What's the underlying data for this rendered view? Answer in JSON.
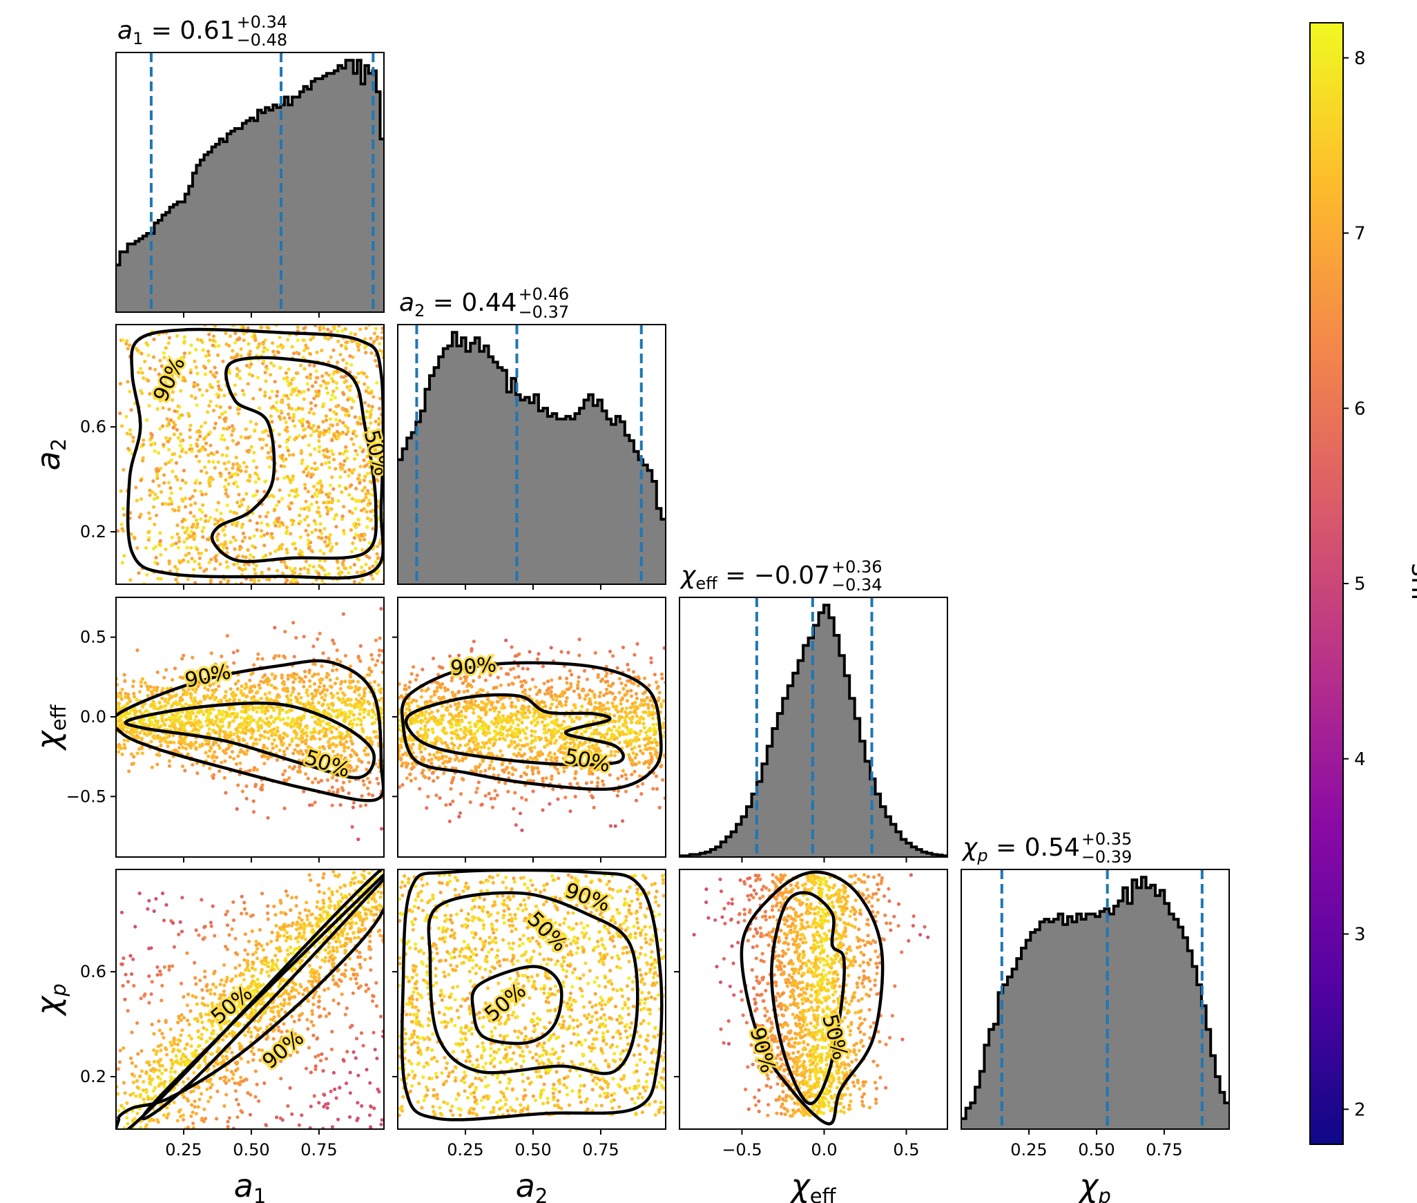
{
  "chart_data": {
    "type": "corner",
    "parameters": [
      {
        "key": "a1",
        "symbol": "a",
        "sub": "1",
        "sub_italic": false,
        "median": "0.61",
        "plus": "+0.34",
        "minus": "−0.48",
        "range": [
          0.0,
          0.99
        ],
        "ci": [
          0.13,
          0.61,
          0.95
        ],
        "hist": [
          0.18,
          0.23,
          0.23,
          0.26,
          0.26,
          0.27,
          0.28,
          0.29,
          0.3,
          0.3,
          0.34,
          0.35,
          0.37,
          0.38,
          0.4,
          0.41,
          0.42,
          0.42,
          0.45,
          0.48,
          0.53,
          0.56,
          0.58,
          0.6,
          0.61,
          0.63,
          0.64,
          0.66,
          0.65,
          0.68,
          0.69,
          0.7,
          0.7,
          0.72,
          0.73,
          0.74,
          0.73,
          0.77,
          0.76,
          0.78,
          0.77,
          0.79,
          0.78,
          0.79,
          0.82,
          0.79,
          0.82,
          0.82,
          0.84,
          0.86,
          0.85,
          0.88,
          0.89,
          0.89,
          0.9,
          0.91,
          0.91,
          0.92,
          0.94,
          0.93,
          0.96,
          0.96,
          0.91,
          0.96,
          0.87,
          0.94,
          0.91,
          0.92,
          0.84,
          0.66
        ]
      },
      {
        "key": "a2",
        "symbol": "a",
        "sub": "2",
        "sub_italic": false,
        "median": "0.44",
        "plus": "+0.46",
        "minus": "−0.37",
        "range": [
          0.0,
          0.99
        ],
        "ci": [
          0.07,
          0.44,
          0.9
        ],
        "hist": [
          0.46,
          0.5,
          0.54,
          0.56,
          0.6,
          0.64,
          0.72,
          0.77,
          0.8,
          0.84,
          0.87,
          0.88,
          0.93,
          0.88,
          0.91,
          0.86,
          0.89,
          0.91,
          0.86,
          0.88,
          0.84,
          0.82,
          0.8,
          0.79,
          0.71,
          0.76,
          0.7,
          0.68,
          0.69,
          0.67,
          0.7,
          0.64,
          0.65,
          0.62,
          0.63,
          0.61,
          0.61,
          0.62,
          0.61,
          0.63,
          0.65,
          0.68,
          0.7,
          0.66,
          0.68,
          0.64,
          0.61,
          0.59,
          0.62,
          0.6,
          0.55,
          0.53,
          0.49,
          0.46,
          0.44,
          0.42,
          0.38,
          0.28,
          0.24
        ]
      },
      {
        "key": "chi_eff",
        "symbol": "χ",
        "sub": "eff",
        "sub_italic": false,
        "median": "−0.07",
        "plus": "+0.36",
        "minus": "−0.34",
        "range": [
          -0.88,
          0.75
        ],
        "ci": [
          -0.41,
          -0.07,
          0.29
        ],
        "hist": [
          0.005,
          0.005,
          0.01,
          0.01,
          0.015,
          0.02,
          0.03,
          0.04,
          0.06,
          0.08,
          0.1,
          0.13,
          0.16,
          0.2,
          0.25,
          0.3,
          0.37,
          0.44,
          0.51,
          0.57,
          0.63,
          0.68,
          0.73,
          0.78,
          0.84,
          0.87,
          0.92,
          0.97,
          1.0,
          0.95,
          0.88,
          0.8,
          0.72,
          0.63,
          0.55,
          0.46,
          0.38,
          0.31,
          0.25,
          0.2,
          0.16,
          0.13,
          0.1,
          0.07,
          0.055,
          0.04,
          0.03,
          0.02,
          0.015,
          0.01,
          0.008,
          0.005
        ]
      },
      {
        "key": "chi_p",
        "symbol": "χ",
        "sub": "p",
        "sub_italic": true,
        "median": "0.54",
        "plus": "+0.35",
        "minus": "−0.39",
        "range": [
          0.0,
          0.99
        ],
        "ci": [
          0.15,
          0.54,
          0.89
        ],
        "hist": [
          0.04,
          0.08,
          0.1,
          0.16,
          0.22,
          0.32,
          0.38,
          0.4,
          0.52,
          0.55,
          0.58,
          0.61,
          0.65,
          0.69,
          0.72,
          0.75,
          0.76,
          0.79,
          0.8,
          0.79,
          0.8,
          0.82,
          0.78,
          0.81,
          0.79,
          0.82,
          0.8,
          0.82,
          0.82,
          0.81,
          0.83,
          0.84,
          0.82,
          0.85,
          0.87,
          0.92,
          0.86,
          0.95,
          0.92,
          0.96,
          0.92,
          0.93,
          0.89,
          0.91,
          0.86,
          0.82,
          0.8,
          0.77,
          0.73,
          0.68,
          0.62,
          0.55,
          0.47,
          0.38,
          0.28,
          0.2,
          0.14,
          0.1
        ]
      }
    ],
    "axis_labels": [
      {
        "symbol": "a",
        "sub": "1",
        "sub_italic": false
      },
      {
        "symbol": "a",
        "sub": "2",
        "sub_italic": false
      },
      {
        "symbol": "χ",
        "sub": "eff",
        "sub_italic": false
      },
      {
        "symbol": "χ",
        "sub": "p",
        "sub_italic": true
      }
    ],
    "x_ticks": [
      [
        "0.25",
        "0.50",
        "0.75"
      ],
      [
        "0.25",
        "0.50",
        "0.75"
      ],
      [
        "−0.5",
        "0.0",
        "0.5"
      ],
      [
        "0.25",
        "0.50",
        "0.75"
      ]
    ],
    "y_ticks": {
      "a2": [
        "0.2",
        "0.6"
      ],
      "chi_eff": [
        "−0.5",
        "0.0",
        "0.5"
      ],
      "chi_p": [
        "0.2",
        "0.6"
      ]
    },
    "contour_levels": [
      "50%",
      "90%"
    ],
    "colorbar": {
      "label": "snr",
      "min": 1.8,
      "max": 8.2,
      "ticks": [
        "2",
        "3",
        "4",
        "5",
        "6",
        "7",
        "8"
      ],
      "colormap": "plasma"
    },
    "colors": {
      "histogram_fill": "#808080",
      "histogram_edge": "#000000",
      "quantile_line": "#1f77b4",
      "contour": "#000000"
    }
  }
}
